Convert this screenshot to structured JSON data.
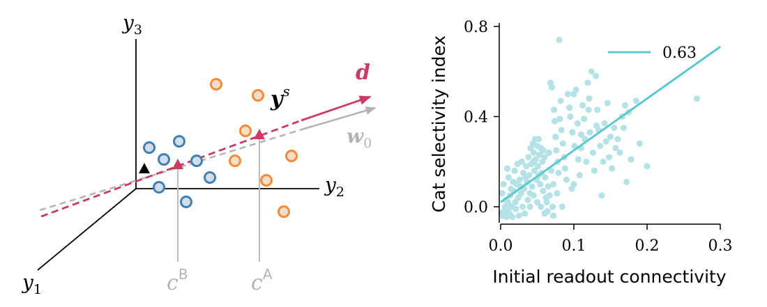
{
  "diagram": {
    "axes": {
      "y1": "y",
      "y1_sub": "1",
      "y2": "y",
      "y2_sub": "2",
      "y3": "y",
      "y3_sub": "3"
    },
    "vectors": {
      "ys": "y",
      "ys_sup": "s",
      "d": "d",
      "w0": "w",
      "w0_sub": "0"
    },
    "projections": {
      "cB": "c",
      "cB_sup": "B",
      "cA": "c",
      "cA_sup": "A"
    },
    "colors": {
      "class_b": "#3f7fb4",
      "class_b_fill": "#d3dde8",
      "class_a": "#ef8b3a",
      "class_a_fill": "#f7ddc5",
      "d_vector": "#cc3a63",
      "w0_vector": "#b3b3b3",
      "projection_line": "#bdbdbd",
      "black": "#000000"
    }
  },
  "chart_data": {
    "type": "scatter",
    "xlabel": "Initial readout connectivity",
    "ylabel": "Cat selectivity index",
    "xlim": [
      0.0,
      0.3
    ],
    "ylim": [
      -0.05,
      0.8
    ],
    "xticks": [
      0.0,
      0.1,
      0.2,
      0.3
    ],
    "xtick_labels": [
      "0.0",
      "0.1",
      "0.2",
      "0.3"
    ],
    "yticks": [
      0.0,
      0.4,
      0.8
    ],
    "ytick_labels": [
      "0.0",
      "0.4",
      "0.8"
    ],
    "legend": {
      "label": "0.63",
      "placement": "top-right"
    },
    "fit_line": {
      "x": [
        0.0,
        0.3
      ],
      "y": [
        0.02,
        0.71
      ]
    },
    "point_color": "#b5e2e6",
    "line_color": "#5ac8cf",
    "points": [
      [
        0.003,
        -0.04
      ],
      [
        0.005,
        -0.02
      ],
      [
        0.006,
        0.0
      ],
      [
        0.008,
        -0.045
      ],
      [
        0.01,
        0.02
      ],
      [
        0.012,
        -0.03
      ],
      [
        0.013,
        0.05
      ],
      [
        0.015,
        0.0
      ],
      [
        0.016,
        -0.045
      ],
      [
        0.018,
        0.07
      ],
      [
        0.02,
        0.02
      ],
      [
        0.021,
        -0.01
      ],
      [
        0.022,
        0.1
      ],
      [
        0.024,
        0.04
      ],
      [
        0.025,
        -0.04
      ],
      [
        0.026,
        0.12
      ],
      [
        0.028,
        0.06
      ],
      [
        0.03,
        0.0
      ],
      [
        0.031,
        0.15
      ],
      [
        0.032,
        0.08
      ],
      [
        0.033,
        -0.03
      ],
      [
        0.035,
        0.18
      ],
      [
        0.036,
        0.11
      ],
      [
        0.037,
        0.03
      ],
      [
        0.038,
        0.22
      ],
      [
        0.039,
        0.14
      ],
      [
        0.04,
        0.06
      ],
      [
        0.041,
        0.26
      ],
      [
        0.042,
        0.19
      ],
      [
        0.043,
        0.09
      ],
      [
        0.044,
        0.28
      ],
      [
        0.045,
        0.24
      ],
      [
        0.046,
        0.16
      ],
      [
        0.047,
        0.3
      ],
      [
        0.048,
        0.21
      ],
      [
        0.049,
        0.12
      ],
      [
        0.05,
        0.27
      ],
      [
        0.051,
        0.18
      ],
      [
        0.052,
        0.3
      ],
      [
        0.053,
        0.23
      ],
      [
        0.054,
        0.1
      ],
      [
        0.055,
        0.26
      ],
      [
        0.056,
        0.15
      ],
      [
        0.057,
        0.2
      ],
      [
        0.058,
        0.07
      ],
      [
        0.06,
        0.22
      ],
      [
        0.061,
        0.13
      ],
      [
        0.062,
        0.04
      ],
      [
        0.063,
        0.02
      ],
      [
        0.064,
        -0.02
      ],
      [
        0.065,
        0.09
      ],
      [
        0.067,
        0.05
      ],
      [
        0.068,
        0.55
      ],
      [
        0.07,
        0.53
      ],
      [
        0.071,
        0.0
      ],
      [
        0.072,
        -0.04
      ],
      [
        0.073,
        0.43
      ],
      [
        0.074,
        0.38
      ],
      [
        0.075,
        0.31
      ],
      [
        0.076,
        0.25
      ],
      [
        0.078,
        0.2
      ],
      [
        0.079,
        0.15
      ],
      [
        0.08,
        0.74
      ],
      [
        0.081,
        0.39
      ],
      [
        0.082,
        0.47
      ],
      [
        0.083,
        0.34
      ],
      [
        0.085,
        0.28
      ],
      [
        0.087,
        0.22
      ],
      [
        0.088,
        0.17
      ],
      [
        0.09,
        0.12
      ],
      [
        0.092,
        0.5
      ],
      [
        0.094,
        0.44
      ],
      [
        0.095,
        0.4
      ],
      [
        0.097,
        0.08
      ],
      [
        0.098,
        0.33
      ],
      [
        0.1,
        0.5
      ],
      [
        0.101,
        0.27
      ],
      [
        0.103,
        0.52
      ],
      [
        0.105,
        0.37
      ],
      [
        0.106,
        0.21
      ],
      [
        0.108,
        0.14
      ],
      [
        0.11,
        0.26
      ],
      [
        0.112,
        0.45
      ],
      [
        0.114,
        0.39
      ],
      [
        0.115,
        0.3
      ],
      [
        0.117,
        0.2
      ],
      [
        0.119,
        0.55
      ],
      [
        0.12,
        0.43
      ],
      [
        0.122,
        0.33
      ],
      [
        0.124,
        0.6
      ],
      [
        0.126,
        0.24
      ],
      [
        0.128,
        0.16
      ],
      [
        0.13,
        0.58
      ],
      [
        0.132,
        0.43
      ],
      [
        0.134,
        0.34
      ],
      [
        0.136,
        0.27
      ],
      [
        0.138,
        0.05
      ],
      [
        0.14,
        0.2
      ],
      [
        0.142,
        0.37
      ],
      [
        0.144,
        0.29
      ],
      [
        0.146,
        0.46
      ],
      [
        0.148,
        0.22
      ],
      [
        0.15,
        0.31
      ],
      [
        0.152,
        0.17
      ],
      [
        0.155,
        0.35
      ],
      [
        0.157,
        0.26
      ],
      [
        0.16,
        0.3
      ],
      [
        0.163,
        0.24
      ],
      [
        0.166,
        0.4
      ],
      [
        0.168,
        0.35
      ],
      [
        0.17,
        0.45
      ],
      [
        0.172,
        0.11
      ],
      [
        0.175,
        0.42
      ],
      [
        0.178,
        0.21
      ],
      [
        0.185,
        0.47
      ],
      [
        0.19,
        0.28
      ],
      [
        0.2,
        0.18
      ],
      [
        0.268,
        0.48
      ],
      [
        0.002,
        0.06
      ],
      [
        0.004,
        0.1
      ],
      [
        0.007,
        0.03
      ],
      [
        0.009,
        -0.01
      ],
      [
        0.011,
        0.13
      ],
      [
        0.014,
        0.08
      ],
      [
        0.017,
        0.11
      ],
      [
        0.019,
        0.16
      ],
      [
        0.023,
        0.19
      ],
      [
        0.027,
        0.09
      ],
      [
        0.029,
        0.2
      ],
      [
        0.034,
        0.13
      ],
      [
        0.04,
        0.0
      ],
      [
        0.045,
        0.05
      ],
      [
        0.05,
        0.02
      ],
      [
        0.055,
        0.0
      ],
      [
        0.06,
        -0.03
      ],
      [
        0.066,
        0.24
      ],
      [
        0.069,
        0.16
      ],
      [
        0.072,
        0.1
      ],
      [
        0.077,
        0.06
      ],
      [
        0.084,
        0.0
      ],
      [
        0.1,
        0.1
      ],
      [
        0.11,
        0.32
      ],
      [
        0.121,
        0.48
      ],
      [
        0.131,
        0.36
      ],
      [
        0.009,
        0.17
      ],
      [
        0.001,
        -0.03
      ],
      [
        0.014,
        -0.04
      ],
      [
        0.045,
        0.2
      ],
      [
        0.052,
        0.14
      ],
      [
        0.058,
        0.25
      ]
    ]
  }
}
